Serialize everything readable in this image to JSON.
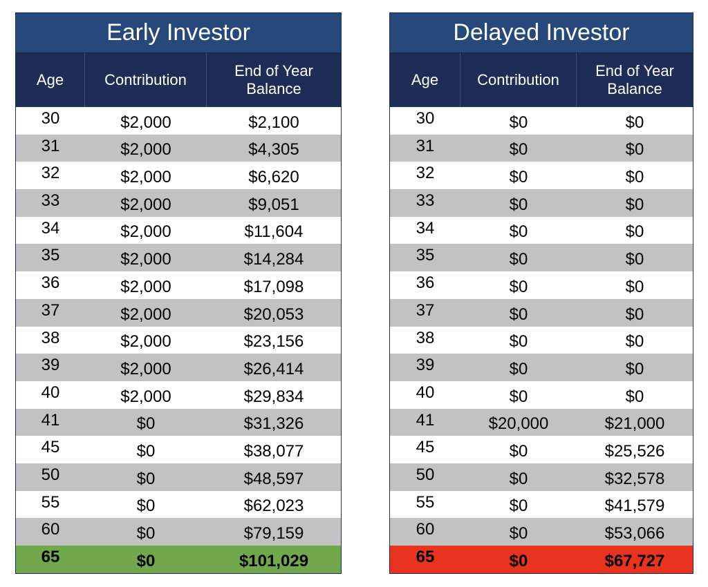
{
  "early": {
    "title": "Early Investor",
    "headers": {
      "age": "Age",
      "contribution": "Contribution",
      "balance_line1": "End of Year",
      "balance_line2": "Balance"
    },
    "rows": [
      [
        "30",
        "$2,000",
        "$2,100"
      ],
      [
        "31",
        "$2,000",
        "$4,305"
      ],
      [
        "32",
        "$2,000",
        "$6,620"
      ],
      [
        "33",
        "$2,000",
        "$9,051"
      ],
      [
        "34",
        "$2,000",
        "$11,604"
      ],
      [
        "35",
        "$2,000",
        "$14,284"
      ],
      [
        "36",
        "$2,000",
        "$17,098"
      ],
      [
        "37",
        "$2,000",
        "$20,053"
      ],
      [
        "38",
        "$2,000",
        "$23,156"
      ],
      [
        "39",
        "$2,000",
        "$26,414"
      ],
      [
        "40",
        "$2,000",
        "$29,834"
      ],
      [
        "41",
        "$0",
        "$31,326"
      ],
      [
        "45",
        "$0",
        "$38,077"
      ],
      [
        "50",
        "$0",
        "$48,597"
      ],
      [
        "55",
        "$0",
        "$62,023"
      ],
      [
        "60",
        "$0",
        "$79,159"
      ],
      [
        "65",
        "$0",
        "$101,029"
      ]
    ],
    "final_color": "#72a84d"
  },
  "delayed": {
    "title": "Delayed Investor",
    "headers": {
      "age": "Age",
      "contribution": "Contribution",
      "balance_line1": "End of Year",
      "balance_line2": "Balance"
    },
    "rows": [
      [
        "30",
        "$0",
        "$0"
      ],
      [
        "31",
        "$0",
        "$0"
      ],
      [
        "32",
        "$0",
        "$0"
      ],
      [
        "33",
        "$0",
        "$0"
      ],
      [
        "34",
        "$0",
        "$0"
      ],
      [
        "35",
        "$0",
        "$0"
      ],
      [
        "36",
        "$0",
        "$0"
      ],
      [
        "37",
        "$0",
        "$0"
      ],
      [
        "38",
        "$0",
        "$0"
      ],
      [
        "39",
        "$0",
        "$0"
      ],
      [
        "40",
        "$0",
        "$0"
      ],
      [
        "41",
        "$20,000",
        "$21,000"
      ],
      [
        "45",
        "$0",
        "$25,526"
      ],
      [
        "50",
        "$0",
        "$32,578"
      ],
      [
        "55",
        "$0",
        "$41,579"
      ],
      [
        "60",
        "$0",
        "$53,066"
      ],
      [
        "65",
        "$0",
        "$67,727"
      ]
    ],
    "final_color": "#e8331f"
  },
  "colors": {
    "title_bg": "#26487a",
    "header_bg": "#1e2d55",
    "stripe_gray": "#c2c2c2"
  }
}
